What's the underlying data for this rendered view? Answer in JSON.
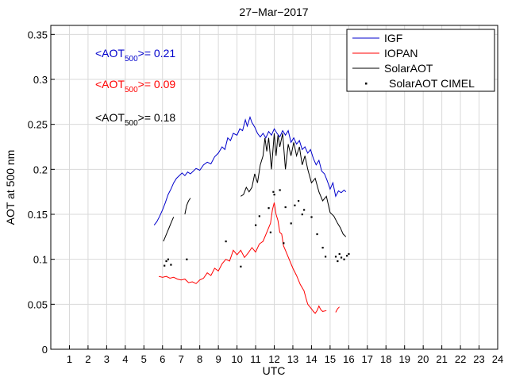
{
  "chart_data": {
    "type": "line",
    "title": "27−Mar−2017",
    "xlabel": "UTC",
    "ylabel": "AOT at 500 nm",
    "xlim": [
      0,
      24
    ],
    "ylim": [
      0,
      0.36
    ],
    "grid": true,
    "legend_position": "top-right",
    "x_ticks": [
      "1",
      "2",
      "3",
      "4",
      "5",
      "6",
      "7",
      "8",
      "9",
      "10",
      "11",
      "12",
      "13",
      "14",
      "15",
      "16",
      "17",
      "18",
      "19",
      "20",
      "21",
      "22",
      "23",
      "24"
    ],
    "y_ticks": [
      "0",
      "0.05",
      "0.1",
      "0.15",
      "0.2",
      "0.25",
      "0.3",
      "0.35"
    ],
    "annotations": [
      {
        "prefix": "<AOT",
        "sub": "500",
        "suffix": ">= 0.21",
        "color": "#0000cc"
      },
      {
        "prefix": "<AOT",
        "sub": "500",
        "suffix": ">= 0.09",
        "color": "#ff0000"
      },
      {
        "prefix": "<AOT",
        "sub": "500",
        "suffix": ">= 0.18",
        "color": "#000000"
      }
    ],
    "series": [
      {
        "name": "IGF",
        "color": "#0000cc",
        "style": "line",
        "segments": [
          [
            [
              5.55,
              0.138
            ],
            [
              5.7,
              0.142
            ],
            [
              5.85,
              0.148
            ],
            [
              6.0,
              0.155
            ],
            [
              6.15,
              0.163
            ],
            [
              6.3,
              0.172
            ],
            [
              6.45,
              0.178
            ],
            [
              6.6,
              0.185
            ],
            [
              6.75,
              0.19
            ],
            [
              6.9,
              0.193
            ],
            [
              7.05,
              0.196
            ],
            [
              7.2,
              0.193
            ],
            [
              7.35,
              0.197
            ],
            [
              7.5,
              0.195
            ],
            [
              7.65,
              0.198
            ],
            [
              7.8,
              0.201
            ],
            [
              8.0,
              0.199
            ],
            [
              8.2,
              0.205
            ],
            [
              8.4,
              0.208
            ],
            [
              8.6,
              0.206
            ],
            [
              8.8,
              0.214
            ],
            [
              9.0,
              0.218
            ],
            [
              9.2,
              0.225
            ],
            [
              9.35,
              0.222
            ],
            [
              9.5,
              0.235
            ],
            [
              9.65,
              0.232
            ],
            [
              9.8,
              0.24
            ],
            [
              10.0,
              0.238
            ],
            [
              10.15,
              0.245
            ],
            [
              10.3,
              0.243
            ],
            [
              10.45,
              0.255
            ],
            [
              10.55,
              0.248
            ],
            [
              10.7,
              0.258
            ],
            [
              10.8,
              0.252
            ],
            [
              10.95,
              0.247
            ],
            [
              11.1,
              0.24
            ],
            [
              11.25,
              0.236
            ],
            [
              11.4,
              0.24
            ],
            [
              11.55,
              0.235
            ],
            [
              11.7,
              0.242
            ],
            [
              11.85,
              0.238
            ],
            [
              12.0,
              0.245
            ],
            [
              12.15,
              0.24
            ],
            [
              12.3,
              0.236
            ],
            [
              12.45,
              0.243
            ],
            [
              12.6,
              0.238
            ],
            [
              12.75,
              0.243
            ],
            [
              12.9,
              0.23
            ],
            [
              13.05,
              0.235
            ],
            [
              13.2,
              0.228
            ],
            [
              13.35,
              0.232
            ],
            [
              13.5,
              0.222
            ],
            [
              13.65,
              0.225
            ],
            [
              13.8,
              0.218
            ],
            [
              13.95,
              0.222
            ],
            [
              14.1,
              0.212
            ],
            [
              14.25,
              0.205
            ],
            [
              14.4,
              0.21
            ],
            [
              14.55,
              0.198
            ],
            [
              14.7,
              0.195
            ],
            [
              14.85,
              0.187
            ],
            [
              15.0,
              0.178
            ],
            [
              15.15,
              0.185
            ],
            [
              15.3,
              0.17
            ],
            [
              15.45,
              0.176
            ],
            [
              15.6,
              0.174
            ],
            [
              15.75,
              0.177
            ],
            [
              15.85,
              0.175
            ]
          ]
        ]
      },
      {
        "name": "IOPAN",
        "color": "#ff0000",
        "style": "line",
        "segments": [
          [
            [
              5.8,
              0.081
            ],
            [
              6.0,
              0.08
            ],
            [
              6.2,
              0.081
            ],
            [
              6.4,
              0.079
            ],
            [
              6.6,
              0.08
            ],
            [
              6.8,
              0.078
            ],
            [
              7.0,
              0.077
            ],
            [
              7.2,
              0.078
            ],
            [
              7.4,
              0.074
            ],
            [
              7.6,
              0.075
            ],
            [
              7.8,
              0.073
            ],
            [
              8.0,
              0.077
            ],
            [
              8.2,
              0.079
            ],
            [
              8.4,
              0.085
            ],
            [
              8.6,
              0.082
            ],
            [
              8.8,
              0.09
            ],
            [
              9.0,
              0.087
            ],
            [
              9.2,
              0.095
            ],
            [
              9.4,
              0.1
            ],
            [
              9.6,
              0.098
            ],
            [
              9.8,
              0.11
            ],
            [
              10.0,
              0.105
            ],
            [
              10.2,
              0.11
            ],
            [
              10.4,
              0.102
            ],
            [
              10.6,
              0.107
            ],
            [
              10.8,
              0.113
            ],
            [
              11.0,
              0.108
            ],
            [
              11.2,
              0.117
            ],
            [
              11.4,
              0.12
            ],
            [
              11.6,
              0.13
            ],
            [
              11.8,
              0.14
            ],
            [
              11.9,
              0.155
            ],
            [
              12.0,
              0.163
            ],
            [
              12.1,
              0.15
            ],
            [
              12.2,
              0.143
            ],
            [
              12.3,
              0.13
            ],
            [
              12.4,
              0.128
            ],
            [
              12.5,
              0.115
            ],
            [
              12.6,
              0.11
            ],
            [
              12.8,
              0.1
            ],
            [
              13.0,
              0.09
            ],
            [
              13.2,
              0.082
            ],
            [
              13.4,
              0.072
            ],
            [
              13.6,
              0.065
            ],
            [
              13.7,
              0.057
            ],
            [
              13.8,
              0.05
            ],
            [
              14.0,
              0.045
            ],
            [
              14.1,
              0.042
            ],
            [
              14.2,
              0.04
            ],
            [
              14.3,
              0.043
            ],
            [
              14.4,
              0.048
            ],
            [
              14.5,
              0.044
            ],
            [
              14.6,
              0.042
            ],
            [
              14.8,
              0.043
            ]
          ],
          [
            [
              15.3,
              0.041
            ],
            [
              15.4,
              0.045
            ],
            [
              15.5,
              0.047
            ]
          ]
        ]
      },
      {
        "name": "SolarAOT",
        "color": "#000000",
        "style": "line",
        "segments": [
          [
            [
              6.05,
              0.12
            ],
            [
              6.15,
              0.125
            ],
            [
              6.25,
              0.13
            ],
            [
              6.35,
              0.135
            ],
            [
              6.45,
              0.14
            ],
            [
              6.55,
              0.145
            ],
            [
              6.6,
              0.147
            ]
          ],
          [
            [
              7.2,
              0.15
            ],
            [
              7.3,
              0.16
            ],
            [
              7.4,
              0.165
            ],
            [
              7.5,
              0.168
            ]
          ],
          [
            [
              10.2,
              0.17
            ],
            [
              10.35,
              0.172
            ],
            [
              10.5,
              0.18
            ],
            [
              10.65,
              0.175
            ],
            [
              10.8,
              0.18
            ],
            [
              10.95,
              0.195
            ],
            [
              11.1,
              0.185
            ],
            [
              11.25,
              0.205
            ],
            [
              11.4,
              0.215
            ],
            [
              11.5,
              0.235
            ],
            [
              11.6,
              0.22
            ],
            [
              11.7,
              0.235
            ],
            [
              11.85,
              0.2
            ],
            [
              12.0,
              0.24
            ],
            [
              12.1,
              0.215
            ],
            [
              12.2,
              0.238
            ],
            [
              12.3,
              0.225
            ],
            [
              12.45,
              0.24
            ],
            [
              12.6,
              0.2
            ],
            [
              12.75,
              0.228
            ],
            [
              12.9,
              0.215
            ],
            [
              13.05,
              0.23
            ],
            [
              13.2,
              0.215
            ],
            [
              13.35,
              0.225
            ],
            [
              13.5,
              0.205
            ],
            [
              13.65,
              0.215
            ],
            [
              13.8,
              0.2
            ],
            [
              14.0,
              0.185
            ],
            [
              14.2,
              0.19
            ],
            [
              14.4,
              0.175
            ],
            [
              14.6,
              0.165
            ],
            [
              14.8,
              0.17
            ],
            [
              15.0,
              0.152
            ],
            [
              15.2,
              0.148
            ],
            [
              15.4,
              0.14
            ],
            [
              15.55,
              0.135
            ],
            [
              15.7,
              0.128
            ],
            [
              15.85,
              0.125
            ]
          ]
        ]
      },
      {
        "name": "SolarAOT CIMEL",
        "color": "#000000",
        "style": "points",
        "points": [
          [
            6.1,
            0.093
          ],
          [
            6.2,
            0.098
          ],
          [
            6.3,
            0.1
          ],
          [
            6.45,
            0.094
          ],
          [
            7.3,
            0.1
          ],
          [
            9.4,
            0.12
          ],
          [
            10.2,
            0.092
          ],
          [
            11.0,
            0.138
          ],
          [
            11.2,
            0.148
          ],
          [
            11.7,
            0.157
          ],
          [
            11.8,
            0.13
          ],
          [
            11.95,
            0.175
          ],
          [
            12.0,
            0.172
          ],
          [
            12.3,
            0.177
          ],
          [
            12.5,
            0.118
          ],
          [
            12.6,
            0.158
          ],
          [
            12.9,
            0.14
          ],
          [
            13.1,
            0.16
          ],
          [
            13.3,
            0.165
          ],
          [
            13.5,
            0.15
          ],
          [
            13.6,
            0.155
          ],
          [
            14.0,
            0.147
          ],
          [
            14.3,
            0.128
          ],
          [
            14.6,
            0.113
          ],
          [
            14.75,
            0.103
          ],
          [
            15.3,
            0.103
          ],
          [
            15.5,
            0.106
          ],
          [
            15.6,
            0.102
          ],
          [
            15.75,
            0.1
          ],
          [
            15.9,
            0.104
          ],
          [
            16.0,
            0.106
          ],
          [
            15.4,
            0.098
          ]
        ]
      }
    ]
  }
}
